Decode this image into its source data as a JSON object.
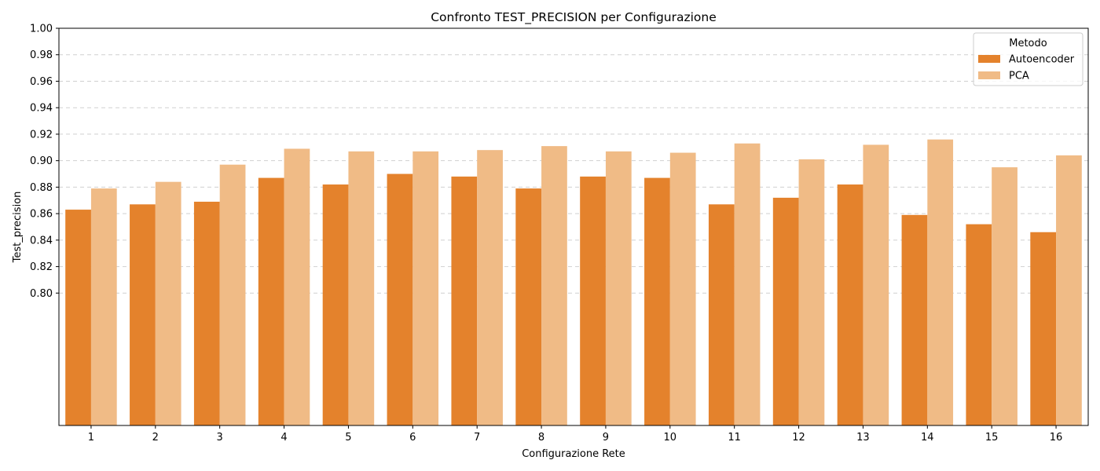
{
  "chart_data": {
    "type": "bar",
    "title": "Confronto TEST_PRECISION per Configurazione",
    "xlabel": "Configurazione Rete",
    "ylabel": "Test_precision",
    "categories": [
      "1",
      "2",
      "3",
      "4",
      "5",
      "6",
      "7",
      "8",
      "9",
      "10",
      "11",
      "12",
      "13",
      "14",
      "15",
      "16"
    ],
    "series": [
      {
        "name": "Autoencoder",
        "color": "#e4822c",
        "values": [
          0.863,
          0.867,
          0.869,
          0.887,
          0.882,
          0.89,
          0.888,
          0.879,
          0.888,
          0.887,
          0.867,
          0.872,
          0.882,
          0.859,
          0.852,
          0.846
        ]
      },
      {
        "name": "PCA",
        "color": "#f0bb86",
        "values": [
          0.879,
          0.884,
          0.897,
          0.909,
          0.907,
          0.907,
          0.908,
          0.911,
          0.907,
          0.906,
          0.913,
          0.901,
          0.912,
          0.916,
          0.895,
          0.904
        ]
      }
    ],
    "ylim": [
      0.7,
      1.0
    ],
    "yticks": [
      0.8,
      0.82,
      0.84,
      0.86,
      0.88,
      0.9,
      0.92,
      0.94,
      0.96,
      0.98,
      1.0
    ],
    "ytick_labels": [
      "0.80",
      "0.82",
      "0.84",
      "0.86",
      "0.88",
      "0.90",
      "0.92",
      "0.94",
      "0.96",
      "0.98",
      "1.00"
    ],
    "grid": "y-dashed",
    "legend": {
      "title": "Metodo",
      "placement": "top-right"
    }
  }
}
